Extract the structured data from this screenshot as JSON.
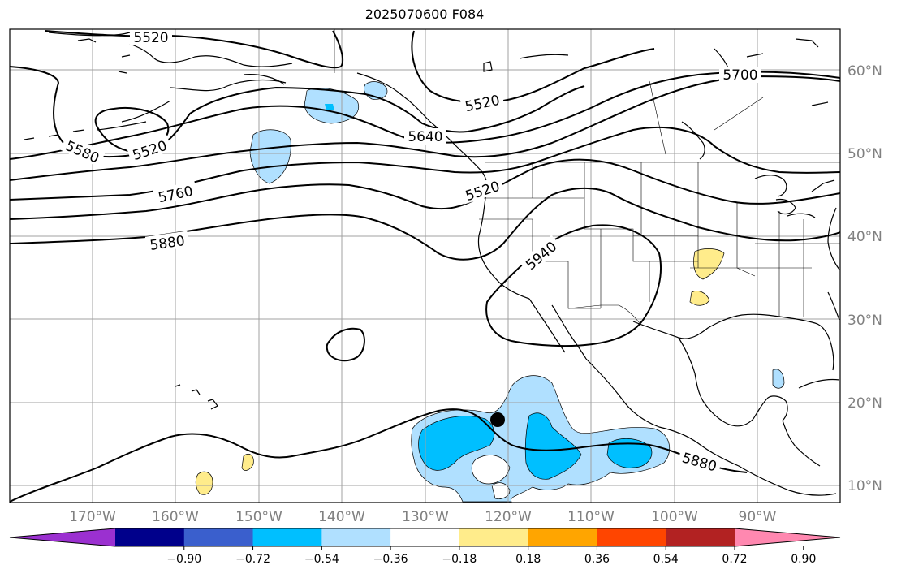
{
  "title": "2025070600 F084",
  "lat_labels": [
    "60°N",
    "50°N",
    "40°N",
    "30°N",
    "20°N",
    "10°N"
  ],
  "lon_labels": [
    "170°W",
    "160°W",
    "150°W",
    "140°W",
    "130°W",
    "120°W",
    "110°W",
    "100°W",
    "90°W"
  ],
  "colorbar": {
    "colors": [
      "#9b30d0",
      "#00008b",
      "#3a5fcd",
      "#00bfff",
      "#b0e0ff",
      "#ffffff",
      "#ffec8b",
      "#ffa500",
      "#ff4500",
      "#b22222",
      "#ff88b0"
    ],
    "tick_labels": [
      "−0.90",
      "−0.72",
      "−0.54",
      "−0.36",
      "−0.18",
      "0.18",
      "0.36",
      "0.54",
      "0.72",
      "0.90"
    ]
  },
  "contour_labels": {
    "c5520_top": "5520",
    "c5580": "5580",
    "c5520_left": "5520",
    "c5640": "5640",
    "c5520_mid": "5520",
    "c5700": "5700",
    "c5760": "5760",
    "c5520_coast": "5520",
    "c5880_left": "5880",
    "c5940": "5940",
    "c5880_right": "5880"
  },
  "colors": {
    "light_blue": "#b0e0ff",
    "blue": "#00bfff",
    "yellow": "#ffec8b",
    "grid": "#a0a0a0",
    "tick_label": "#808080"
  }
}
